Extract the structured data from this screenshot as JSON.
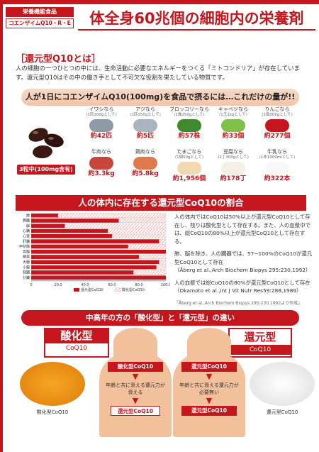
{
  "header": {
    "tag1": "栄養機能食品",
    "tag2": "コエンザイムQ10・R・E",
    "title": "体全身60兆個の細胞内の栄養剤"
  },
  "intro": {
    "heading": "［還元型Q10とは］",
    "text": "人の細胞の一つひとつの中には、生命活動に必要なエネルギーをつくる「ミトコンドリア」が存在しています。還元型Q10はその中の働き手として不可欠な役割を果たしている物質です。"
  },
  "food_section": {
    "banner": "人が1日にコエンザイムQ10(100mg)を食品で摂るには…これだけの量が!!",
    "capsule_label": "3粒中(100mg含有)",
    "items": [
      {
        "food": "イワシなら",
        "sub": "(1匹200gとして)",
        "amount": "約42匹"
      },
      {
        "food": "アジなら",
        "sub": "(1匹150gとして)",
        "amount": "約5匹"
      },
      {
        "food": "ブロッコリーなら",
        "sub": "(1株250gとして)",
        "amount": "約57株"
      },
      {
        "food": "キャベツなら",
        "sub": "(1玉1kgとして)",
        "amount": "約33個"
      },
      {
        "food": "りんごなら",
        "sub": "(1個300gとして)",
        "amount": "約277個"
      },
      {
        "food": "牛肉なら",
        "sub": "",
        "amount": "約3.3kg"
      },
      {
        "food": "鶏肉なら",
        "sub": "",
        "amount": "約5.8kg"
      },
      {
        "food": "たまごなら",
        "sub": "(1個50gとして)",
        "amount": "約1,956個"
      },
      {
        "food": "豆腐なら",
        "sub": "(1丁300gとして)",
        "amount": "約178丁"
      },
      {
        "food": "牛乳なら",
        "sub": "(1本1000mlとして)",
        "amount": "約322本"
      }
    ],
    "colors": [
      "#8e9aa6",
      "#a8b4bf",
      "#3f8a2f",
      "#7fbf4a",
      "#c4161c",
      "#c9463d",
      "#e07a4a",
      "#f0d9b0",
      "#f4f0e6",
      "#f8f8f8"
    ]
  },
  "ratio_section": {
    "banner": "人の体内に存在する還元型CoQ10の割合",
    "note1": "人の体内ではCoQ10は50%以上が還元型CoQ10として存在し、残りは酸化型として存在する。また、人の血漿中では、総CoQ10の80%以上が還元型CoQ10として存在する。",
    "note2": "肺、脳を除き、人の臓器では、57~100%のCoQ10が還元型CoQ10として存在",
    "note2_ref": "（Åberg et al.,Arch Biochem Biopys 295:230,1992）",
    "note3": "人の血漿では総CoQ10の80%が還元型CoQ10として存在",
    "note3_ref": "（Okamoto et al.,Int J Vit Nutr Res59:288,1989）",
    "footer_ref": "「Åberg et al.,Arch Biochem Biopys 295:230,1992より作成」"
  },
  "chart_data": {
    "type": "bar",
    "orientation": "horizontal",
    "stacked": true,
    "categories": [
      "肺",
      "膵臓",
      "脳",
      "心臓",
      "心室",
      "肝臓",
      "甲状腺",
      "胃腸",
      "精巣",
      "大腸",
      "小腸",
      "腎臓",
      "計臓"
    ],
    "series": [
      {
        "name": "還元型CoQ10",
        "values": [
          20,
          65,
          25,
          57,
          60,
          95,
          72,
          100,
          80,
          95,
          93,
          76,
          100
        ]
      },
      {
        "name": "酸化型CoQ10",
        "values": [
          80,
          35,
          75,
          43,
          40,
          5,
          28,
          0,
          20,
          5,
          7,
          24,
          0
        ]
      }
    ],
    "xticks": [
      "0",
      "20.0",
      "40.0",
      "60.0",
      "80.0",
      "100.0"
    ],
    "xlim": [
      0,
      100
    ],
    "legend": [
      "還元型CoQ10",
      "酸化型CoQ10"
    ]
  },
  "compare_section": {
    "banner": "中高年の方の「酸化型」と「還元型」の違い",
    "left_title": "酸化型",
    "left_sub": "CoQ10",
    "right_title": "還元型",
    "right_sub": "CoQ10",
    "left_pill1": "酸化型CoQ10",
    "left_text": "年齢と共に衰える還元力が衰える",
    "left_pill2": "還元型CoQ10",
    "right_pill1": "還元型CoQ10",
    "right_text": "年齢と共に衰える還元力が必要無い",
    "right_pill2": "還元型CoQ10",
    "left_powder_label": "酸化型CoQ10",
    "right_powder_label": "還元型CoQ10"
  }
}
